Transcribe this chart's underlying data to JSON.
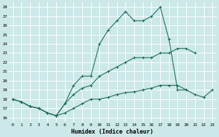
{
  "xlabel": "Humidex (Indice chaleur)",
  "bg_color": "#cce8e8",
  "grid_color": "#ffffff",
  "line_color": "#1a6b5a",
  "xlim": [
    -0.5,
    23.5
  ],
  "ylim": [
    15.5,
    28.5
  ],
  "yticks": [
    16,
    17,
    18,
    19,
    20,
    21,
    22,
    23,
    24,
    25,
    26,
    27,
    28
  ],
  "xticks": [
    0,
    1,
    2,
    3,
    4,
    5,
    6,
    7,
    8,
    9,
    10,
    11,
    12,
    13,
    14,
    15,
    16,
    17,
    18,
    19,
    20,
    21,
    22,
    23
  ],
  "line1_x": [
    0,
    1,
    2,
    3,
    4,
    5,
    6,
    7,
    8,
    9,
    10,
    11,
    12,
    13,
    14,
    15,
    16,
    17,
    18,
    19,
    20,
    21,
    22,
    23
  ],
  "line1_y": [
    18,
    17.7,
    17.2,
    17.0,
    16.5,
    16.2,
    16.5,
    17.0,
    17.5,
    18.0,
    18.0,
    18.2,
    18.5,
    18.7,
    18.8,
    19.0,
    19.2,
    19.5,
    19.5,
    19.5,
    19.0,
    18.5,
    18.2,
    19.0
  ],
  "line2_x": [
    0,
    1,
    2,
    3,
    4,
    5,
    6,
    7,
    8,
    9,
    10,
    11,
    12,
    13,
    14,
    15,
    16,
    17,
    18,
    19,
    20,
    21,
    22,
    23
  ],
  "line2_y": [
    18,
    17.7,
    17.2,
    17.0,
    16.5,
    16.2,
    17.5,
    18.5,
    19.2,
    19.5,
    20.5,
    21.0,
    21.5,
    22.0,
    22.5,
    22.5,
    22.5,
    23.0,
    23.0,
    23.5,
    23.5,
    23.0,
    null,
    null
  ],
  "line3_x": [
    0,
    1,
    2,
    3,
    4,
    5,
    6,
    7,
    8,
    9,
    10,
    11,
    12,
    13,
    14,
    15,
    16,
    17,
    18,
    19,
    20,
    21,
    22,
    23
  ],
  "line3_y": [
    18,
    17.7,
    17.2,
    17.0,
    16.5,
    16.2,
    17.5,
    19.5,
    20.5,
    20.5,
    24.0,
    25.5,
    26.5,
    27.5,
    26.5,
    26.5,
    27.0,
    28.0,
    24.5,
    19.0,
    19.0,
    null,
    null,
    null
  ]
}
